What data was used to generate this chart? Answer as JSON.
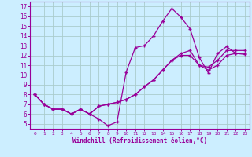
{
  "xlabel": "Windchill (Refroidissement éolien,°C)",
  "bg_color": "#cceeff",
  "plot_bg_color": "#cceeff",
  "line_color": "#990099",
  "grid_color": "#aacccc",
  "xlim": [
    -0.5,
    23.5
  ],
  "ylim": [
    4.5,
    17.5
  ],
  "xticks": [
    0,
    1,
    2,
    3,
    4,
    5,
    6,
    7,
    8,
    9,
    10,
    11,
    12,
    13,
    14,
    15,
    16,
    17,
    18,
    19,
    20,
    21,
    22,
    23
  ],
  "yticks": [
    5,
    6,
    7,
    8,
    9,
    10,
    11,
    12,
    13,
    14,
    15,
    16,
    17
  ],
  "line1_x": [
    0,
    1,
    2,
    3,
    4,
    5,
    6,
    7,
    8,
    9,
    10,
    11,
    12,
    13,
    14,
    15,
    16,
    17,
    18,
    19,
    20,
    21,
    22,
    23
  ],
  "line1_y": [
    8.0,
    7.0,
    6.5,
    6.5,
    6.0,
    6.5,
    6.0,
    5.5,
    4.8,
    5.2,
    10.3,
    12.8,
    13.0,
    14.0,
    15.5,
    16.8,
    15.9,
    14.7,
    11.8,
    10.2,
    12.2,
    12.9,
    12.2,
    12.1
  ],
  "line2_x": [
    0,
    1,
    2,
    3,
    4,
    5,
    6,
    7,
    8,
    9,
    10,
    11,
    12,
    13,
    14,
    15,
    16,
    17,
    18,
    19,
    20,
    21,
    22,
    23
  ],
  "line2_y": [
    8.0,
    7.0,
    6.5,
    6.5,
    6.0,
    6.5,
    6.0,
    6.8,
    7.0,
    7.2,
    7.5,
    8.0,
    8.8,
    9.5,
    10.5,
    11.5,
    12.2,
    12.5,
    11.0,
    10.8,
    11.5,
    12.5,
    12.5,
    12.5
  ],
  "line3_x": [
    0,
    1,
    2,
    3,
    4,
    5,
    6,
    7,
    8,
    9,
    10,
    11,
    12,
    13,
    14,
    15,
    16,
    17,
    18,
    19,
    20,
    21,
    22,
    23
  ],
  "line3_y": [
    8.0,
    7.0,
    6.5,
    6.5,
    6.0,
    6.5,
    6.0,
    6.8,
    7.0,
    7.2,
    7.5,
    8.0,
    8.8,
    9.5,
    10.5,
    11.5,
    12.0,
    12.0,
    11.0,
    10.5,
    11.0,
    12.0,
    12.2,
    12.2
  ]
}
